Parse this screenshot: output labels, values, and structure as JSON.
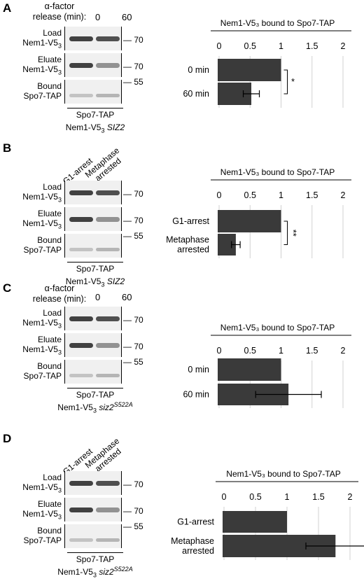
{
  "panels": [
    {
      "letter": "A",
      "header_type": "release",
      "header_line1": "α-factor",
      "header_line2": "release (min):",
      "lanes": [
        "0",
        "60"
      ],
      "rows": [
        {
          "l1": "Load",
          "l2": "Nem1-V5",
          "sub": "3",
          "mw": "70"
        },
        {
          "l1": "Eluate",
          "l2": "Nem1-V5",
          "sub": "3",
          "mw": "70"
        },
        {
          "l1": "Bound",
          "l2": "Spo7-TAP",
          "sub": "",
          "mw": "55"
        }
      ],
      "strain1": "Spo7-TAP",
      "strain2_pre": "Nem1-V5",
      "strain2_sub": "3",
      "strain2_gene": "SIZ2",
      "strain2_sup": ""
    },
    {
      "letter": "B",
      "header_type": "angled",
      "lanes": [
        "G1-arrest",
        "Metaphase arrested"
      ],
      "rows": [
        {
          "l1": "Load",
          "l2": "Nem1-V5",
          "sub": "3",
          "mw": "70"
        },
        {
          "l1": "Eluate",
          "l2": "Nem1-V5",
          "sub": "3",
          "mw": "70"
        },
        {
          "l1": "Bound",
          "l2": "Spo7-TAP",
          "sub": "",
          "mw": "55"
        }
      ],
      "strain1": "Spo7-TAP",
      "strain2_pre": "Nem1-V5",
      "strain2_sub": "3",
      "strain2_gene": "SIZ2",
      "strain2_sup": ""
    },
    {
      "letter": "C",
      "header_type": "release",
      "header_line1": "α-factor",
      "header_line2": "release (min):",
      "lanes": [
        "0",
        "60"
      ],
      "rows": [
        {
          "l1": "Load",
          "l2": "Nem1-V5",
          "sub": "3",
          "mw": "70"
        },
        {
          "l1": "Eluate",
          "l2": "Nem1-V5",
          "sub": "3",
          "mw": "70"
        },
        {
          "l1": "Bound",
          "l2": "Spo7-TAP",
          "sub": "",
          "mw": "55"
        }
      ],
      "strain1": "Spo7-TAP",
      "strain2_pre": "Nem1-V5",
      "strain2_sub": "3",
      "strain2_gene": "siz2",
      "strain2_sup": "S522A"
    },
    {
      "letter": "D",
      "header_type": "angled",
      "lanes": [
        "G1-arrest",
        "Metaphase arrested"
      ],
      "rows": [
        {
          "l1": "Load",
          "l2": "Nem1-V5",
          "sub": "3",
          "mw": "70"
        },
        {
          "l1": "Eluate",
          "l2": "Nem1-V5",
          "sub": "3",
          "mw": "70"
        },
        {
          "l1": "Bound",
          "l2": "Spo7-TAP",
          "sub": "",
          "mw": "55"
        }
      ],
      "strain1": "Spo7-TAP",
      "strain2_pre": "Nem1-V5",
      "strain2_sub": "3",
      "strain2_gene": "siz2",
      "strain2_sup": "S522A"
    }
  ],
  "chart_data": [
    {
      "type": "bar",
      "orientation": "horizontal",
      "title": "Nem1-V5₃ bound to Spo7-TAP",
      "categories": [
        "0 min",
        "60 min"
      ],
      "values": [
        1.0,
        0.52
      ],
      "errors": [
        0,
        0.13
      ],
      "xlim": [
        0,
        2
      ],
      "xticks": [
        "0",
        "0.5",
        "1",
        "1.5",
        "2"
      ],
      "significance": "*",
      "bar_color": "#3a3a3a"
    },
    {
      "type": "bar",
      "orientation": "horizontal",
      "title": "Nem1-V5₃ bound to Spo7-TAP",
      "categories": [
        "G1-arrest",
        "Metaphase arrested"
      ],
      "values": [
        1.0,
        0.27
      ],
      "errors": [
        0,
        0.07
      ],
      "xlim": [
        0,
        2
      ],
      "xticks": [
        "0",
        "0.5",
        "1",
        "1.5",
        "2"
      ],
      "significance": "**",
      "bar_color": "#3a3a3a"
    },
    {
      "type": "bar",
      "orientation": "horizontal",
      "title": "Nem1-V5₃ bound to Spo7-TAP",
      "categories": [
        "0 min",
        "60 min"
      ],
      "values": [
        1.0,
        1.12
      ],
      "errors": [
        0,
        0.53
      ],
      "xlim": [
        0,
        2
      ],
      "xticks": [
        "0",
        "0.5",
        "1",
        "1.5",
        "2"
      ],
      "significance": "",
      "bar_color": "#3a3a3a"
    },
    {
      "type": "bar",
      "orientation": "horizontal",
      "title": "Nem1-V5₃ bound to Spo7-TAP",
      "categories": [
        "G1-arrest",
        "Metaphase arrested"
      ],
      "values": [
        1.0,
        1.77
      ],
      "errors": [
        0,
        0.47
      ],
      "xlim": [
        0,
        2
      ],
      "xticks": [
        "0",
        "0.5",
        "1",
        "1.5",
        "2"
      ],
      "significance": "",
      "bar_color": "#3a3a3a"
    }
  ]
}
